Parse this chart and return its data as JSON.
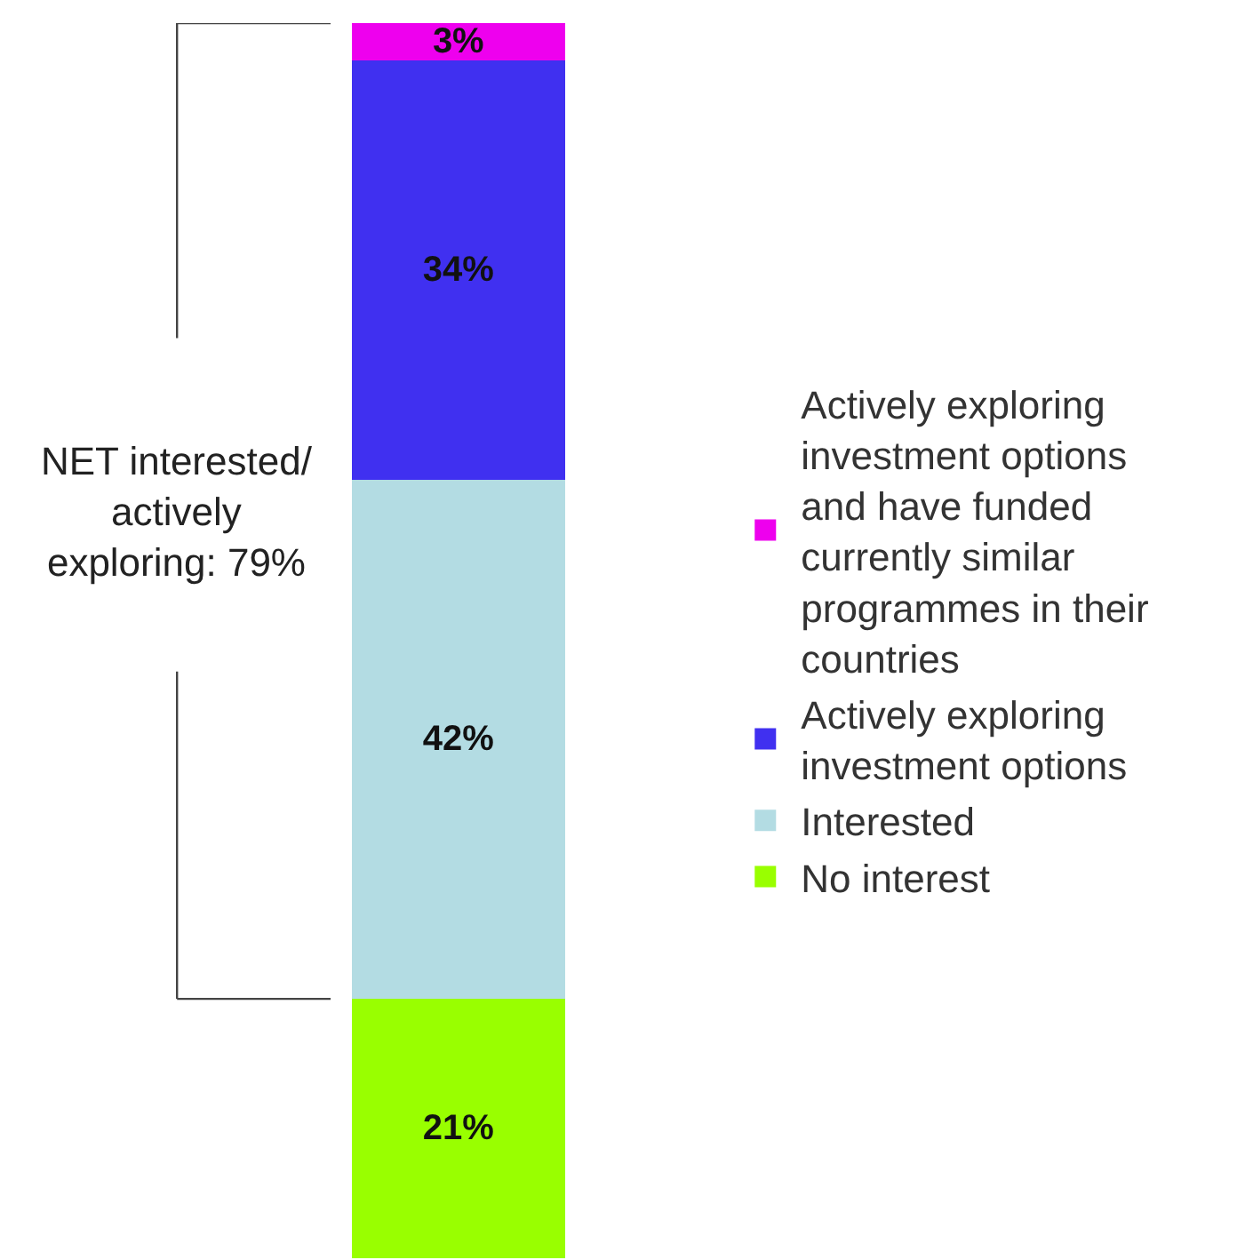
{
  "chart_data": {
    "type": "bar",
    "stacked": true,
    "categories": [
      null
    ],
    "legend": "right",
    "series": [
      {
        "name": "No interest",
        "color": "#99ff00",
        "values": [
          21
        ],
        "value_labels": [
          "21%"
        ]
      },
      {
        "name": "Interested",
        "color": "#b3dce3",
        "values": [
          42
        ],
        "value_labels": [
          "42%"
        ]
      },
      {
        "name": "Actively exploring investment options",
        "color": "#4030f0",
        "values": [
          34
        ],
        "value_labels": [
          "34%"
        ]
      },
      {
        "name": "Actively exploring investment options and have funded currently similar programmes in their countries",
        "color": "#ee00ee",
        "values": [
          3
        ],
        "value_labels": [
          "3%"
        ]
      }
    ],
    "annotations": [
      "NET interested/ actively exploring: 79%"
    ]
  }
}
